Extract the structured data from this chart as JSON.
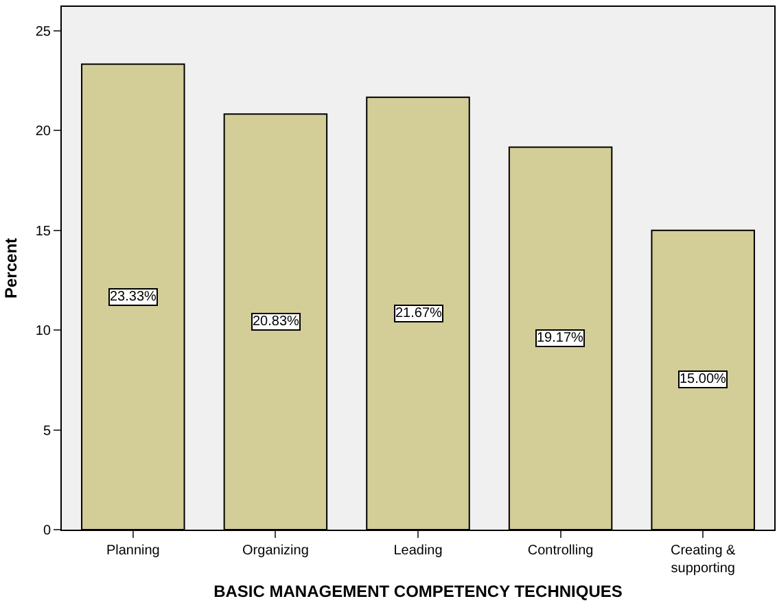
{
  "chart_data": {
    "type": "bar",
    "xlabel": "BASIC MANAGEMENT COMPETENCY TECHNIQUES",
    "ylabel": "Percent",
    "categories": [
      "Planning",
      "Organizing",
      "Leading",
      "Controlling",
      "Creating &\nsupporting"
    ],
    "values": [
      23.33,
      20.83,
      21.67,
      19.17,
      15.0
    ],
    "value_labels": [
      "23.33%",
      "20.83%",
      "21.67%",
      "19.17%",
      "15.00%"
    ],
    "color": "#d3ce97",
    "ylim": [
      0,
      26.2
    ],
    "yticks": [
      0,
      5,
      10,
      15,
      20,
      25
    ],
    "grid": false,
    "legend": false
  }
}
